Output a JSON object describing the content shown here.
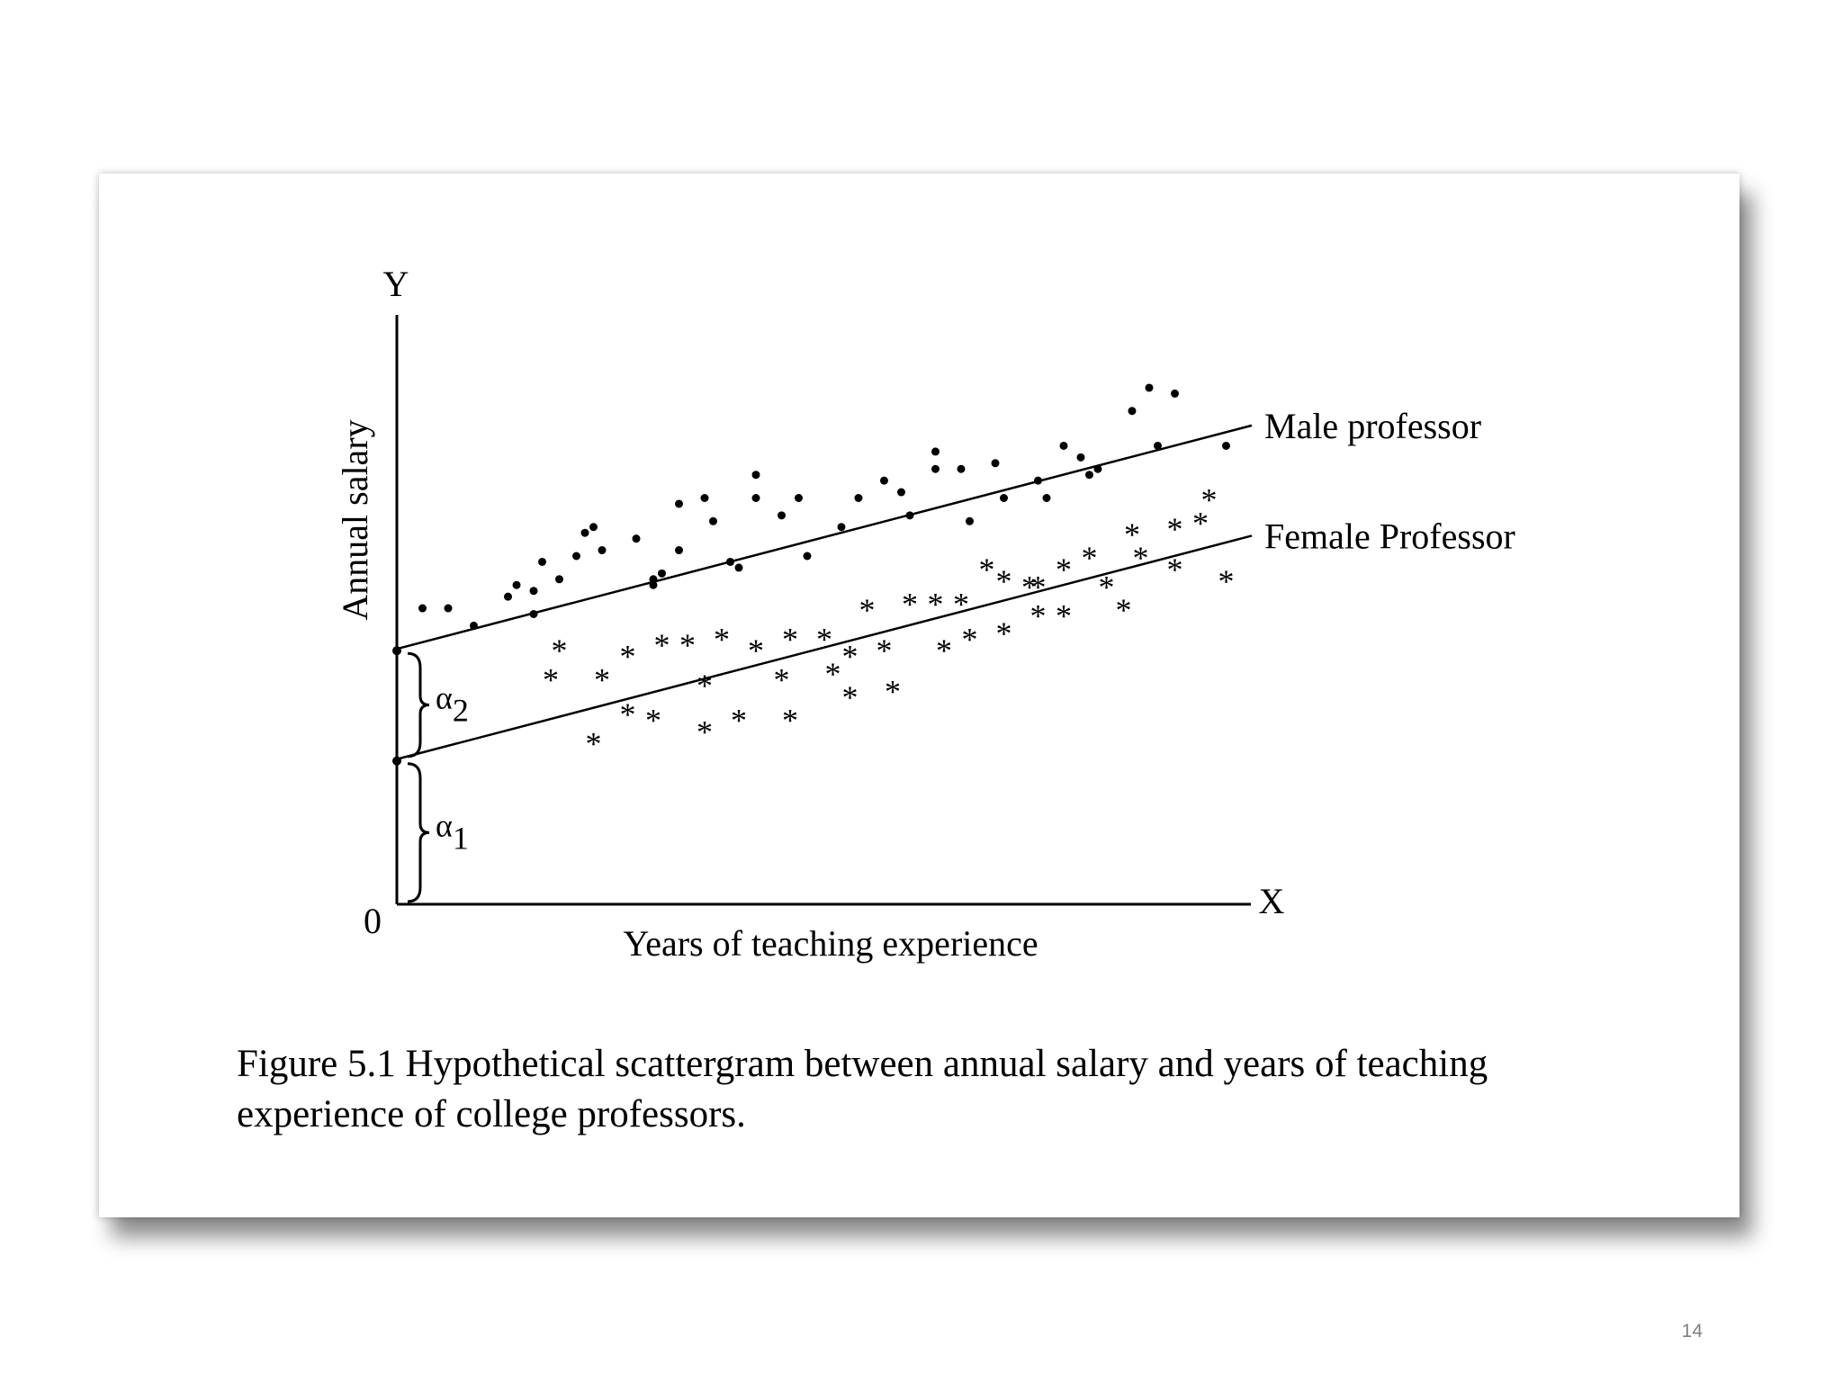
{
  "figure": {
    "caption": "Figure 5.1   Hypothetical scattergram between annual salary and years of teaching experience of college professors."
  },
  "page_number": "14",
  "chart_data": {
    "type": "scatter",
    "xlabel": "Years of teaching experience",
    "ylabel": "Annual salary",
    "x_axis_symbol": "X",
    "y_axis_symbol": "Y",
    "origin_label": "0",
    "xlim": [
      0,
      100
    ],
    "ylim": [
      0,
      100
    ],
    "series": [
      {
        "name": "Male professor",
        "marker": "•",
        "line": {
          "intercept": 44,
          "slope": 0.385
        },
        "points": [
          [
            3,
            51
          ],
          [
            6,
            51
          ],
          [
            9,
            48
          ],
          [
            13,
            53
          ],
          [
            14,
            55
          ],
          [
            16,
            50
          ],
          [
            16,
            54
          ],
          [
            17,
            59
          ],
          [
            19,
            56
          ],
          [
            21,
            60
          ],
          [
            22,
            64
          ],
          [
            23,
            65
          ],
          [
            24,
            61
          ],
          [
            28,
            63
          ],
          [
            30,
            55
          ],
          [
            30,
            56
          ],
          [
            31,
            57
          ],
          [
            33,
            61
          ],
          [
            33,
            69
          ],
          [
            36,
            70
          ],
          [
            37,
            66
          ],
          [
            39,
            59
          ],
          [
            40,
            58
          ],
          [
            42,
            70
          ],
          [
            42,
            74
          ],
          [
            45,
            67
          ],
          [
            47,
            70
          ],
          [
            48,
            60
          ],
          [
            52,
            65
          ],
          [
            54,
            70
          ],
          [
            57,
            73
          ],
          [
            59,
            71
          ],
          [
            60,
            67
          ],
          [
            63,
            78
          ],
          [
            63,
            75
          ],
          [
            66,
            75
          ],
          [
            67,
            66
          ],
          [
            70,
            76
          ],
          [
            71,
            70
          ],
          [
            75,
            73
          ],
          [
            76,
            70
          ],
          [
            78,
            79
          ],
          [
            80,
            77
          ],
          [
            81,
            74
          ],
          [
            82,
            75
          ],
          [
            86,
            85
          ],
          [
            88,
            89
          ],
          [
            89,
            79
          ],
          [
            91,
            88
          ],
          [
            97,
            79
          ]
        ]
      },
      {
        "name": "Female Professor",
        "marker": "*",
        "line": {
          "intercept": 25,
          "slope": 0.385
        },
        "points": [
          [
            18,
            39
          ],
          [
            19,
            44
          ],
          [
            23,
            28
          ],
          [
            24,
            39
          ],
          [
            27,
            43
          ],
          [
            27,
            33
          ],
          [
            30,
            32
          ],
          [
            31,
            45
          ],
          [
            34,
            45
          ],
          [
            36,
            30
          ],
          [
            36,
            38
          ],
          [
            38,
            46
          ],
          [
            40,
            32
          ],
          [
            42,
            44
          ],
          [
            45,
            39
          ],
          [
            46,
            46
          ],
          [
            46,
            32
          ],
          [
            50,
            46
          ],
          [
            51,
            40
          ],
          [
            53,
            36
          ],
          [
            53,
            43
          ],
          [
            55,
            51
          ],
          [
            57,
            44
          ],
          [
            58,
            37
          ],
          [
            60,
            52
          ],
          [
            63,
            52
          ],
          [
            64,
            44
          ],
          [
            66,
            52
          ],
          [
            67,
            46
          ],
          [
            69,
            58
          ],
          [
            71,
            56
          ],
          [
            71,
            47
          ],
          [
            74,
            55
          ],
          [
            75,
            55
          ],
          [
            75,
            50
          ],
          [
            78,
            58
          ],
          [
            78,
            50
          ],
          [
            81,
            60
          ],
          [
            83,
            55
          ],
          [
            85,
            51
          ],
          [
            86,
            64
          ],
          [
            87,
            60
          ],
          [
            91,
            65
          ],
          [
            91,
            58
          ],
          [
            94,
            66
          ],
          [
            95,
            70
          ],
          [
            97,
            56
          ]
        ]
      }
    ],
    "annotations": [
      {
        "symbol": "α",
        "subscript": "2",
        "from_y": 25,
        "to_y": 44
      },
      {
        "symbol": "α",
        "subscript": "1",
        "from_y": 0,
        "to_y": 25
      }
    ]
  }
}
